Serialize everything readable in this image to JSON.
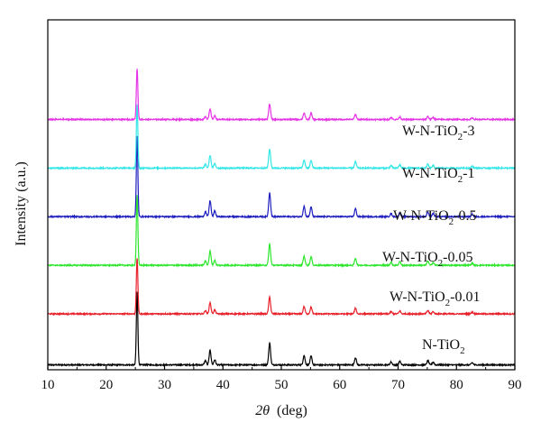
{
  "chart_data": {
    "type": "line",
    "title": "",
    "xlabel_var": "2θ",
    "xlabel_unit": "(deg)",
    "ylabel": "Intensity (a.u.)",
    "xlim": [
      10,
      90
    ],
    "xticks": [
      10,
      20,
      30,
      40,
      50,
      60,
      70,
      80,
      90
    ],
    "grid": false,
    "legend": "none",
    "peaks": [
      {
        "x": 25.3,
        "rel": 1.0
      },
      {
        "x": 37.0,
        "rel": 0.06
      },
      {
        "x": 37.8,
        "rel": 0.2
      },
      {
        "x": 38.6,
        "rel": 0.07
      },
      {
        "x": 48.0,
        "rel": 0.3
      },
      {
        "x": 53.9,
        "rel": 0.13
      },
      {
        "x": 55.1,
        "rel": 0.12
      },
      {
        "x": 62.7,
        "rel": 0.1
      },
      {
        "x": 68.8,
        "rel": 0.04
      },
      {
        "x": 70.3,
        "rel": 0.05
      },
      {
        "x": 75.1,
        "rel": 0.06
      },
      {
        "x": 76.0,
        "rel": 0.04
      },
      {
        "x": 82.7,
        "rel": 0.03
      }
    ],
    "series": [
      {
        "label_main": "N-TiO",
        "label_sub": "2",
        "label_suffix": "",
        "color": "#000000",
        "baseline": 0.1,
        "peak_height": 1.5
      },
      {
        "label_main": "W-N-TiO",
        "label_sub": "2",
        "label_suffix": "-0.01",
        "color": "#e8202a",
        "baseline": 1.15,
        "peak_height": 1.15
      },
      {
        "label_main": "W-N-TiO",
        "label_sub": "2",
        "label_suffix": "-0.05",
        "color": "#2ee62e",
        "baseline": 2.15,
        "peak_height": 1.45
      },
      {
        "label_main": "W-N-TiO",
        "label_sub": "2",
        "label_suffix": "-0.5",
        "color": "#1f1fbf",
        "baseline": 3.15,
        "peak_height": 1.65
      },
      {
        "label_main": "W-N-TiO",
        "label_sub": "2",
        "label_suffix": "-1",
        "color": "#33e6e6",
        "baseline": 4.15,
        "peak_height": 1.3
      },
      {
        "label_main": "W-N-TiO",
        "label_sub": "2",
        "label_suffix": "-3",
        "color": "#e633e6",
        "baseline": 5.15,
        "peak_height": 1.05
      }
    ]
  }
}
